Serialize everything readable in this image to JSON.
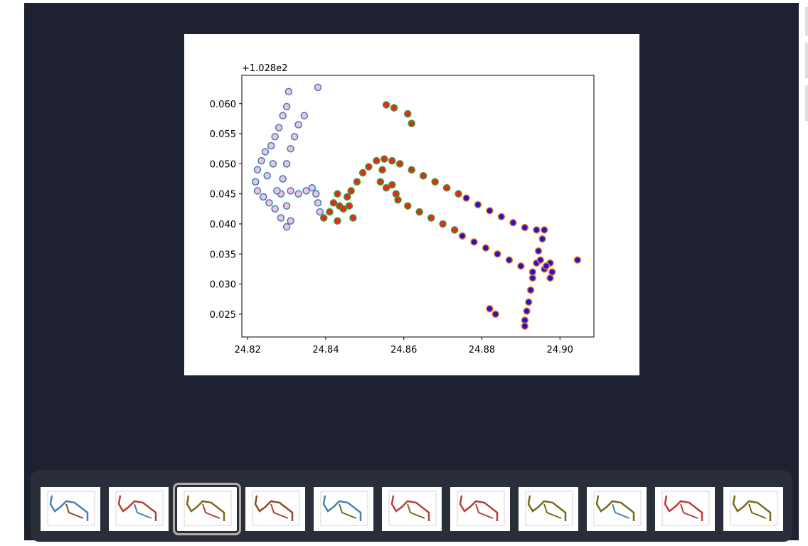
{
  "chart_data": {
    "type": "scatter",
    "offset_label": "+1.028e2",
    "xlim": [
      24.8185,
      24.9087
    ],
    "ylim": [
      0.0212,
      0.0647
    ],
    "xticks": [
      24.82,
      24.84,
      24.86,
      24.88,
      {
        "value": 24.9,
        "label": "24.90"
      }
    ],
    "yticks": [
      {
        "value": 0.025,
        "label": "0.025"
      },
      {
        "value": 0.03,
        "label": "0.030"
      },
      {
        "value": 0.035,
        "label": "0.035"
      },
      {
        "value": 0.04,
        "label": "0.040"
      },
      {
        "value": 0.045,
        "label": "0.045"
      },
      {
        "value": 0.05,
        "label": "0.050"
      },
      {
        "value": 0.055,
        "label": "0.055"
      },
      {
        "value": 0.06,
        "label": "0.060"
      }
    ],
    "series": [
      {
        "color": "#f4c2d8",
        "edgecolor": "#3a7ebf",
        "x": [
          24.8305,
          24.83,
          24.829,
          24.828,
          24.827,
          24.826,
          24.8245,
          24.8235,
          24.8225,
          24.822,
          24.8225,
          24.824,
          24.8255,
          24.827,
          24.8285,
          24.83,
          24.831,
          24.83,
          24.8285,
          24.829,
          24.83,
          24.831,
          24.832,
          24.833,
          24.8345,
          24.831,
          24.833,
          24.835,
          24.8365,
          24.8375,
          24.838,
          24.8385,
          24.838,
          24.825,
          24.8265,
          24.8275
        ],
        "values": [
          0.062,
          0.0595,
          0.058,
          0.056,
          0.0545,
          0.053,
          0.052,
          0.0505,
          0.049,
          0.047,
          0.0455,
          0.0445,
          0.0435,
          0.0425,
          0.041,
          0.0395,
          0.0405,
          0.043,
          0.045,
          0.0475,
          0.05,
          0.0525,
          0.0545,
          0.0565,
          0.058,
          0.0455,
          0.045,
          0.0455,
          0.046,
          0.045,
          0.0435,
          0.042,
          0.0627,
          0.048,
          0.05,
          0.0455
        ]
      },
      {
        "color": "#e8281e",
        "edgecolor": "#3c9a32",
        "x": [
          24.8395,
          24.841,
          24.842,
          24.843,
          24.8435,
          24.843,
          24.8445,
          24.8455,
          24.846,
          24.847,
          24.8465,
          24.848,
          24.8495,
          24.851,
          24.853,
          24.855,
          24.857,
          24.859,
          24.862,
          24.865,
          24.868,
          24.871,
          24.874,
          24.8545,
          24.854,
          24.8555,
          24.857,
          24.858,
          24.8585,
          24.861,
          24.864,
          24.867,
          24.87,
          24.873,
          24.8555,
          24.8575,
          24.861,
          24.862
        ],
        "values": [
          0.041,
          0.042,
          0.0435,
          0.045,
          0.043,
          0.0405,
          0.0425,
          0.0445,
          0.043,
          0.041,
          0.0455,
          0.047,
          0.0485,
          0.0495,
          0.0505,
          0.0508,
          0.0505,
          0.05,
          0.049,
          0.048,
          0.047,
          0.046,
          0.045,
          0.049,
          0.047,
          0.046,
          0.0465,
          0.045,
          0.044,
          0.043,
          0.042,
          0.041,
          0.04,
          0.039,
          0.0598,
          0.0593,
          0.0583,
          0.0567
        ]
      },
      {
        "color": "#2a12c8",
        "edgecolor": "#f4801e",
        "x": [
          24.876,
          24.879,
          24.882,
          24.885,
          24.888,
          24.891,
          24.894,
          24.896,
          24.8955,
          24.8945,
          24.894,
          24.893,
          24.8925,
          24.892,
          24.8915,
          24.891,
          24.891,
          24.875,
          24.878,
          24.881,
          24.884,
          24.887,
          24.89,
          24.893,
          24.896,
          24.8975,
          24.898,
          24.8975,
          24.8965,
          24.895,
          24.9045,
          24.882,
          24.8835
        ],
        "values": [
          0.0443,
          0.0432,
          0.0422,
          0.0412,
          0.0402,
          0.0394,
          0.039,
          0.039,
          0.0375,
          0.0355,
          0.0335,
          0.031,
          0.029,
          0.027,
          0.0255,
          0.024,
          0.023,
          0.038,
          0.037,
          0.036,
          0.035,
          0.034,
          0.033,
          0.032,
          0.0325,
          0.0335,
          0.032,
          0.031,
          0.033,
          0.034,
          0.034,
          0.0259,
          0.025
        ]
      }
    ]
  }
}
